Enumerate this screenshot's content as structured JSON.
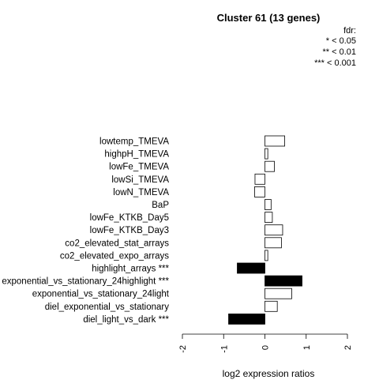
{
  "chart_data": {
    "type": "bar",
    "orientation": "horizontal",
    "title": "Cluster 61 (13 genes)",
    "xlabel": "log2 expression ratios",
    "ylabel": "",
    "xlim": [
      -2,
      2
    ],
    "xticks": [
      -2,
      -1,
      0,
      1,
      2
    ],
    "xtick_labels": [
      "-2",
      "-1",
      "0",
      "1",
      "2"
    ],
    "legend": {
      "title": "fdr:",
      "entries": [
        "* < 0.05",
        "** < 0.01",
        "*** < 0.001"
      ],
      "position": "top-right"
    },
    "categories": [
      "lowtemp_TMEVA",
      "highpH_TMEVA",
      "lowFe_TMEVA",
      "lowSi_TMEVA",
      "lowN_TMEVA",
      "BaP",
      "lowFe_KTKB_Day5",
      "lowFe_KTKB_Day3",
      "co2_elevated_stat_arrays",
      "co2_elevated_expo_arrays",
      "highlight_arrays ***",
      "exponential_vs_stationary_24highlight ***",
      "exponential_vs_stationary_24light",
      "diel_exponential_vs_stationary",
      "diel_light_vs_dark ***"
    ],
    "values": [
      0.48,
      0.07,
      0.23,
      -0.24,
      -0.25,
      0.15,
      0.18,
      0.43,
      0.4,
      0.07,
      -0.67,
      0.9,
      0.65,
      0.3,
      -0.88
    ],
    "significant": [
      false,
      false,
      false,
      false,
      false,
      false,
      false,
      false,
      false,
      false,
      true,
      true,
      false,
      false,
      true
    ],
    "colors": {
      "significant": "#000000",
      "normal": "#ffffff",
      "stroke": "#000000"
    }
  }
}
